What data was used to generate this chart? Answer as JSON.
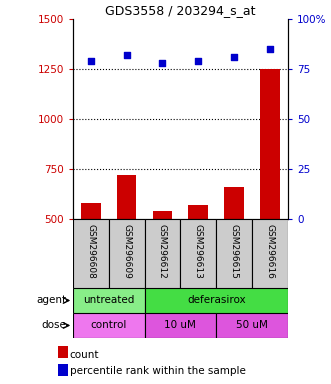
{
  "title": "GDS3558 / 203294_s_at",
  "samples": [
    "GSM296608",
    "GSM296609",
    "GSM296612",
    "GSM296613",
    "GSM296615",
    "GSM296616"
  ],
  "counts": [
    580,
    720,
    540,
    570,
    660,
    1250
  ],
  "percentiles": [
    79,
    82,
    78,
    79,
    81,
    85
  ],
  "ylim_left": [
    500,
    1500
  ],
  "ylim_right": [
    0,
    100
  ],
  "yticks_left": [
    500,
    750,
    1000,
    1250,
    1500
  ],
  "yticks_right": [
    0,
    25,
    50,
    75,
    100
  ],
  "bar_color": "#cc0000",
  "dot_color": "#0000cc",
  "grid_color": "#000000",
  "agent_groups": [
    {
      "label": "untreated",
      "start": 0,
      "end": 2,
      "color": "#88ee88"
    },
    {
      "label": "deferasirox",
      "start": 2,
      "end": 6,
      "color": "#44dd44"
    }
  ],
  "dose_groups": [
    {
      "label": "control",
      "start": 0,
      "end": 2,
      "color": "#ee77ee"
    },
    {
      "label": "10 uM",
      "start": 2,
      "end": 4,
      "color": "#dd55dd"
    },
    {
      "label": "50 uM",
      "start": 4,
      "end": 6,
      "color": "#dd55dd"
    }
  ],
  "sample_bg_color": "#cccccc",
  "legend_count_color": "#cc0000",
  "legend_dot_color": "#0000cc",
  "background_color": "#ffffff",
  "label_color_left": "#cc0000",
  "label_color_right": "#0000cc"
}
